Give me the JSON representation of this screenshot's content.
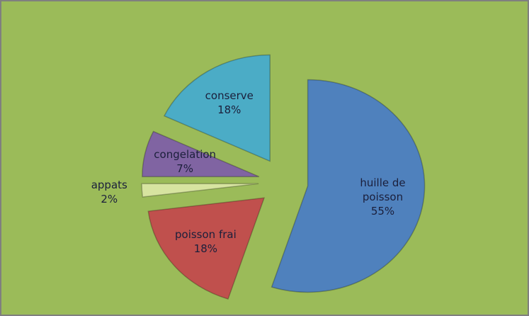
{
  "chart_data": {
    "type": "pie",
    "categories": [
      "huille de poisson",
      "poisson frai",
      "appats",
      "congelation",
      "conserve"
    ],
    "values": [
      55,
      18,
      2,
      7,
      18
    ],
    "value_labels": [
      "55%",
      "18%",
      "2%",
      "7%",
      "18%"
    ],
    "colors": [
      "#4f81bd",
      "#c0504d",
      "#d7e4a0",
      "#8064a2",
      "#4bacc6"
    ]
  }
}
